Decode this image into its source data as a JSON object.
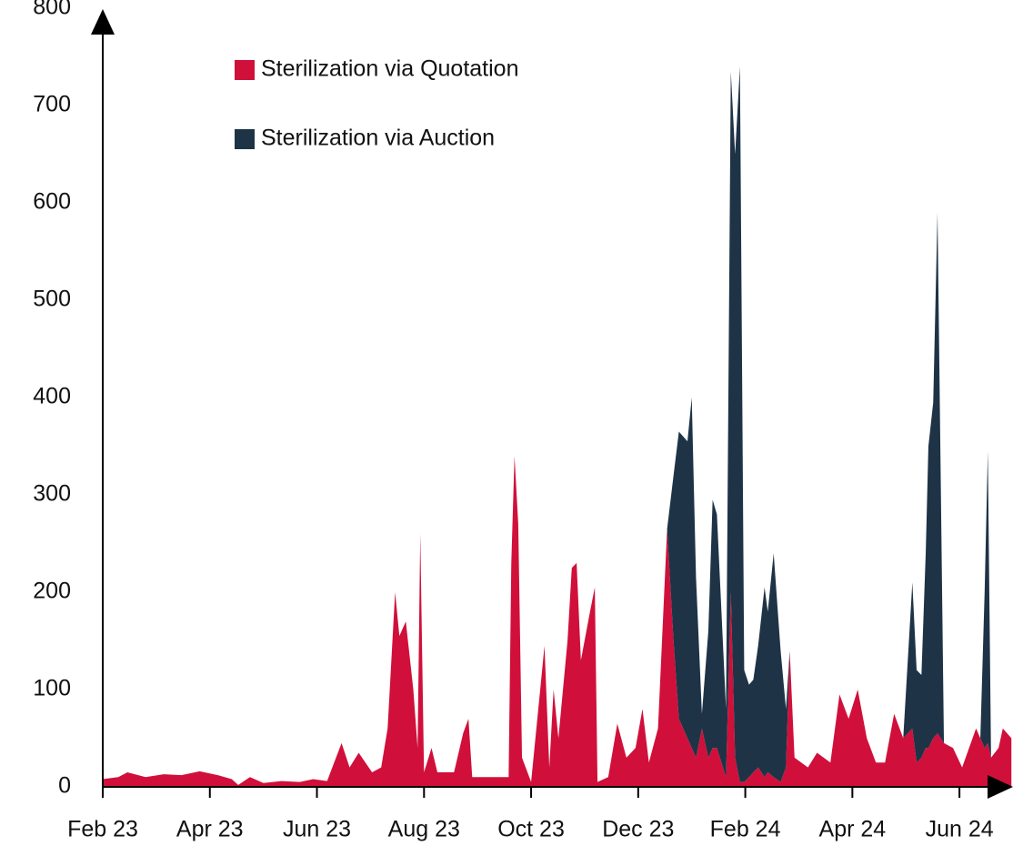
{
  "chart_data": {
    "type": "stacked_area",
    "x": [
      0,
      0.29,
      0.46,
      0.8,
      1.14,
      1.47,
      1.81,
      2.15,
      2.41,
      2.53,
      2.75,
      3.0,
      3.34,
      3.68,
      3.93,
      4.19,
      4.46,
      4.61,
      4.78,
      5.03,
      5.2,
      5.32,
      5.46,
      5.54,
      5.66,
      5.8,
      5.88,
      5.93,
      6.0,
      6.14,
      6.25,
      6.56,
      6.73,
      6.83,
      6.9,
      7.32,
      7.58,
      7.63,
      7.69,
      7.76,
      7.83,
      8.0,
      8.17,
      8.25,
      8.34,
      8.42,
      8.51,
      8.68,
      8.76,
      8.85,
      8.93,
      9.1,
      9.19,
      9.24,
      9.44,
      9.61,
      9.78,
      9.95,
      10.08,
      10.2,
      10.37,
      10.54,
      10.66,
      10.76,
      10.92,
      11.0,
      11.08,
      11.19,
      11.31,
      11.39,
      11.47,
      11.64,
      11.73,
      11.81,
      11.9,
      11.98,
      12.07,
      12.15,
      12.24,
      12.36,
      12.42,
      12.53,
      12.66,
      12.76,
      12.83,
      12.92,
      13.17,
      13.34,
      13.59,
      13.76,
      13.93,
      14.1,
      14.27,
      14.44,
      14.61,
      14.78,
      14.95,
      15.12,
      15.2,
      15.29,
      15.37,
      15.42,
      15.51,
      15.59,
      15.71,
      15.88,
      16.05,
      16.31,
      16.39,
      16.47,
      16.53,
      16.59,
      16.73,
      16.81,
      16.97
    ],
    "series": [
      {
        "name": "Sterilization via Quotation",
        "color": "#d0103a",
        "values": [
          8,
          10,
          15,
          10,
          13,
          12,
          16,
          12,
          8,
          2,
          10,
          4,
          6,
          5,
          8,
          6,
          45,
          20,
          35,
          15,
          20,
          60,
          200,
          155,
          170,
          100,
          40,
          260,
          15,
          40,
          15,
          15,
          55,
          70,
          10,
          10,
          10,
          230,
          340,
          270,
          30,
          5,
          100,
          145,
          20,
          100,
          50,
          150,
          225,
          230,
          130,
          180,
          205,
          5,
          10,
          65,
          30,
          40,
          80,
          25,
          60,
          265,
          150,
          70,
          50,
          40,
          30,
          60,
          30,
          40,
          40,
          10,
          200,
          30,
          5,
          5,
          10,
          15,
          20,
          10,
          15,
          10,
          5,
          20,
          140,
          30,
          20,
          35,
          25,
          95,
          70,
          100,
          50,
          25,
          25,
          75,
          50,
          60,
          25,
          30,
          40,
          40,
          50,
          55,
          45,
          40,
          20,
          60,
          50,
          40,
          45,
          30,
          40,
          60,
          50
        ]
      },
      {
        "name": "Sterilization via Auction",
        "color": "#1f3347",
        "values": [
          0,
          0,
          0,
          0,
          0,
          0,
          0,
          0,
          0,
          0,
          0,
          0,
          0,
          0,
          0,
          0,
          0,
          0,
          0,
          0,
          0,
          0,
          0,
          0,
          0,
          0,
          0,
          0,
          0,
          0,
          0,
          0,
          0,
          0,
          0,
          0,
          0,
          0,
          0,
          0,
          0,
          0,
          0,
          0,
          0,
          0,
          0,
          0,
          0,
          0,
          0,
          0,
          0,
          0,
          0,
          0,
          0,
          0,
          0,
          0,
          0,
          0,
          170,
          295,
          305,
          360,
          185,
          15,
          130,
          255,
          240,
          70,
          535,
          620,
          735,
          115,
          95,
          95,
          125,
          195,
          165,
          230,
          135,
          60,
          0,
          0,
          0,
          0,
          0,
          0,
          0,
          0,
          0,
          0,
          0,
          0,
          0,
          150,
          95,
          85,
          200,
          310,
          345,
          535,
          0,
          0,
          0,
          0,
          0,
          160,
          300,
          0,
          0,
          0,
          0
        ]
      }
    ],
    "xlim": [
      0,
      17
    ],
    "xticks": [
      {
        "value": 0,
        "label": "Feb 23"
      },
      {
        "value": 2,
        "label": "Apr 23"
      },
      {
        "value": 4,
        "label": "Jun 23"
      },
      {
        "value": 6,
        "label": "Aug 23"
      },
      {
        "value": 8,
        "label": "Oct 23"
      },
      {
        "value": 10,
        "label": "Dec 23"
      },
      {
        "value": 12,
        "label": "Feb 24"
      },
      {
        "value": 14,
        "label": "Apr 24"
      },
      {
        "value": 16,
        "label": "Jun 24"
      }
    ],
    "ylim": [
      0,
      800
    ],
    "yticks": [
      0,
      100,
      200,
      300,
      400,
      500,
      600,
      700,
      800
    ],
    "grid": false,
    "legend": "top-left"
  }
}
